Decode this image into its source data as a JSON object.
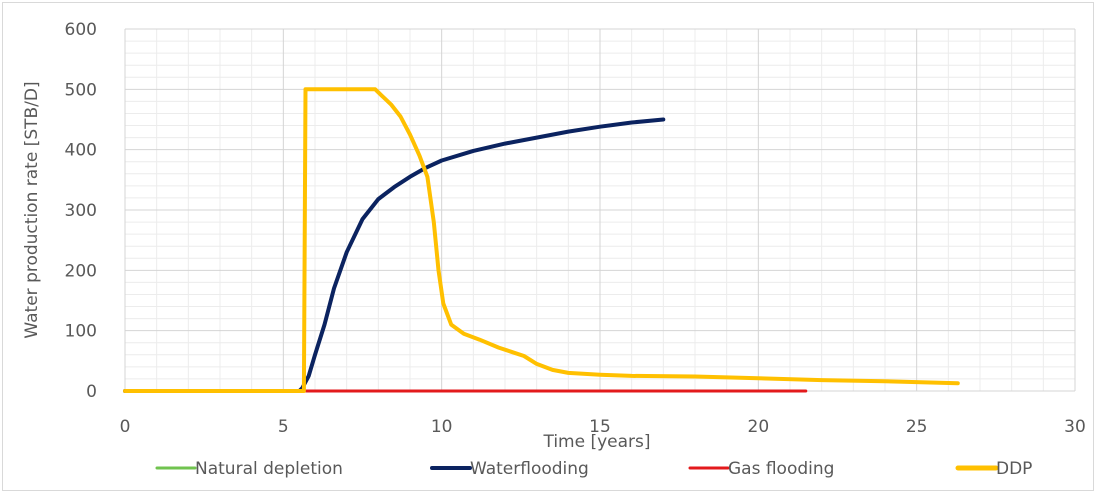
{
  "chart_data": {
    "type": "line",
    "title": "",
    "xlabel": "Time [years]",
    "ylabel": "Water production rate [STB/D]",
    "xlim": [
      0,
      30
    ],
    "ylim": [
      0,
      600
    ],
    "x_ticks": [
      0,
      5,
      10,
      15,
      20,
      25,
      30
    ],
    "y_ticks": [
      0,
      100,
      200,
      300,
      400,
      500,
      600
    ],
    "grid": true,
    "legend_position": "bottom",
    "series": [
      {
        "name": "Natural depletion",
        "color": "#70c34f",
        "points": [
          [
            0,
            0
          ],
          [
            6.3,
            0
          ]
        ]
      },
      {
        "name": "Waterflooding",
        "color": "#0b2360",
        "points": [
          [
            0,
            0
          ],
          [
            5.5,
            0
          ],
          [
            5.6,
            5
          ],
          [
            5.8,
            25
          ],
          [
            6.0,
            60
          ],
          [
            6.3,
            110
          ],
          [
            6.6,
            170
          ],
          [
            7.0,
            230
          ],
          [
            7.5,
            285
          ],
          [
            8.0,
            318
          ],
          [
            8.5,
            338
          ],
          [
            9.0,
            355
          ],
          [
            9.5,
            370
          ],
          [
            10.0,
            382
          ],
          [
            11.0,
            398
          ],
          [
            12.0,
            410
          ],
          [
            13.0,
            420
          ],
          [
            14.0,
            430
          ],
          [
            15.0,
            438
          ],
          [
            16.0,
            445
          ],
          [
            17.0,
            450
          ]
        ]
      },
      {
        "name": "Gas flooding",
        "color": "#e31a1c",
        "points": [
          [
            0,
            0
          ],
          [
            21.5,
            0
          ]
        ]
      },
      {
        "name": "DDP",
        "color": "#ffc000",
        "points": [
          [
            0,
            0
          ],
          [
            5.65,
            0
          ],
          [
            5.7,
            500
          ],
          [
            7.9,
            500
          ],
          [
            8.1,
            490
          ],
          [
            8.4,
            475
          ],
          [
            8.7,
            455
          ],
          [
            9.0,
            425
          ],
          [
            9.3,
            390
          ],
          [
            9.55,
            355
          ],
          [
            9.75,
            280
          ],
          [
            9.9,
            200
          ],
          [
            10.05,
            145
          ],
          [
            10.3,
            110
          ],
          [
            10.7,
            95
          ],
          [
            11.2,
            85
          ],
          [
            11.8,
            72
          ],
          [
            12.2,
            65
          ],
          [
            12.6,
            58
          ],
          [
            13.0,
            45
          ],
          [
            13.5,
            35
          ],
          [
            14.0,
            30
          ],
          [
            15.0,
            27
          ],
          [
            16.0,
            25
          ],
          [
            18.0,
            24
          ],
          [
            20.0,
            21
          ],
          [
            22.0,
            18
          ],
          [
            24.0,
            16
          ],
          [
            26.3,
            13
          ]
        ]
      }
    ]
  }
}
